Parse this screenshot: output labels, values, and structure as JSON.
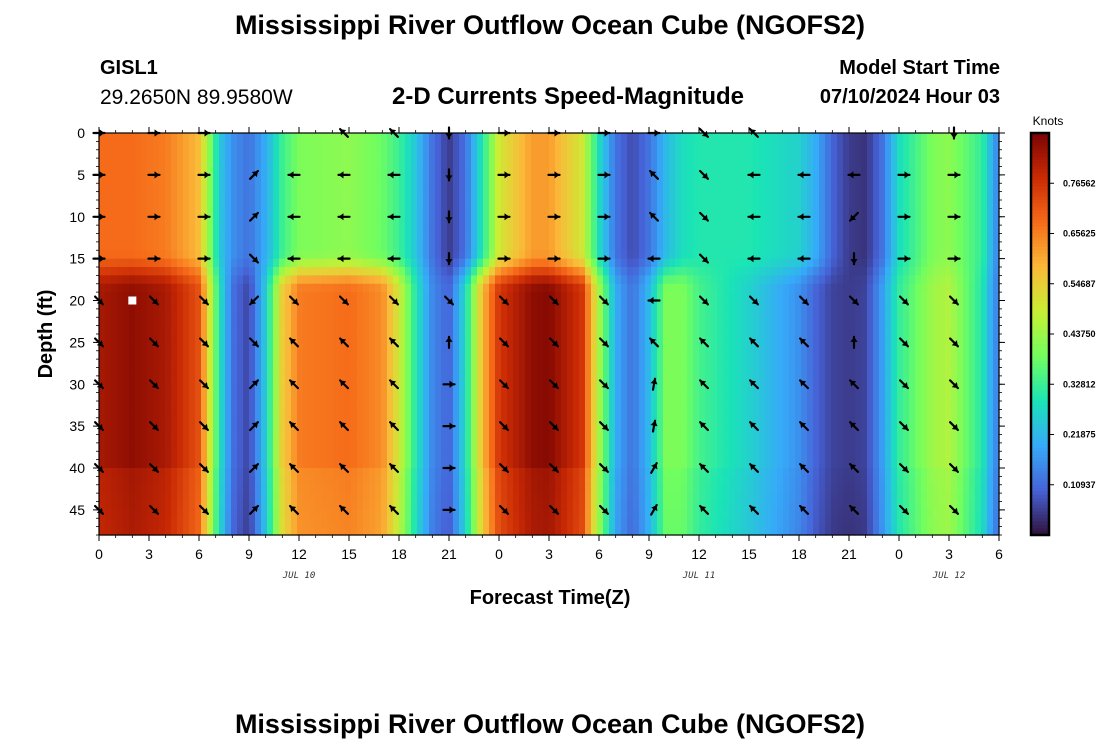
{
  "header": {
    "title": "Mississippi River Outflow Ocean Cube (NGOFS2)",
    "station": "GISL1",
    "coordinates": "29.2650N  89.9580W",
    "subtitle": "2-D Currents Speed-Magnitude",
    "start_label": "Model Start Time",
    "start_value": "07/10/2024 Hour 03"
  },
  "footer": {
    "title": "Mississippi River Outflow Ocean Cube (NGOFS2)"
  },
  "colors": {
    "colormap": [
      "#30123b",
      "#4662d7",
      "#36aaf9",
      "#1ae4b6",
      "#72fe5e",
      "#c8ef34",
      "#faba39",
      "#f66b19",
      "#ca2a04",
      "#7a0403"
    ]
  },
  "chart_data": {
    "type": "heatmap",
    "title": "2-D Currents Speed-Magnitude",
    "xlabel": "Forecast Time(Z)",
    "ylabel": "Depth (ft)",
    "x_range_hours": [
      0,
      54
    ],
    "ylim": [
      0,
      48
    ],
    "x_tick_labels": [
      "0",
      "3",
      "6",
      "9",
      "12",
      "15",
      "18",
      "21",
      "0",
      "3",
      "6",
      "9",
      "12",
      "15",
      "18",
      "21",
      "0",
      "3",
      "6"
    ],
    "y_tick_labels": [
      "0",
      "5",
      "10",
      "15",
      "20",
      "25",
      "30",
      "35",
      "40",
      "45"
    ],
    "date_labels": [
      {
        "text": "JUL 10",
        "hour": 12
      },
      {
        "text": "JUL 11",
        "hour": 36
      },
      {
        "text": "JUL 12",
        "hour": 51
      }
    ],
    "colorbar": {
      "unit": "Knots",
      "range": [
        0,
        0.875
      ],
      "tick_values": [
        0.10937,
        0.21875,
        0.32812,
        0.4375,
        0.54687,
        0.65625,
        0.76562
      ],
      "tick_labels": [
        "0.10937",
        "0.21875",
        "0.32812",
        "0.43750",
        "0.54687",
        "0.65625",
        "0.76562"
      ]
    },
    "speed_profiles": {
      "hours": [
        0,
        2,
        4,
        6,
        6.5,
        7.2,
        8,
        9,
        10,
        11,
        12,
        15,
        17,
        18,
        19,
        20,
        21,
        22,
        23,
        24,
        26,
        27,
        29,
        30,
        31,
        32,
        33,
        34,
        35,
        36,
        39,
        42,
        43,
        44,
        45,
        46,
        47,
        48,
        50,
        51,
        53,
        53.7,
        54
      ],
      "surface_0_15ft": [
        0.68,
        0.68,
        0.66,
        0.58,
        0.45,
        0.25,
        0.16,
        0.12,
        0.2,
        0.33,
        0.4,
        0.42,
        0.38,
        0.33,
        0.24,
        0.12,
        0.05,
        0.12,
        0.3,
        0.5,
        0.62,
        0.62,
        0.5,
        0.28,
        0.12,
        0.07,
        0.12,
        0.22,
        0.28,
        0.3,
        0.3,
        0.26,
        0.2,
        0.1,
        0.05,
        0.04,
        0.12,
        0.28,
        0.4,
        0.42,
        0.32,
        0.18,
        0.14
      ],
      "deep_18_48ft": [
        0.82,
        0.85,
        0.82,
        0.72,
        0.55,
        0.3,
        0.12,
        0.06,
        0.25,
        0.55,
        0.66,
        0.68,
        0.64,
        0.5,
        0.3,
        0.15,
        0.1,
        0.28,
        0.58,
        0.76,
        0.85,
        0.86,
        0.76,
        0.45,
        0.2,
        0.12,
        0.22,
        0.4,
        0.4,
        0.34,
        0.26,
        0.16,
        0.1,
        0.06,
        0.05,
        0.06,
        0.18,
        0.32,
        0.44,
        0.46,
        0.3,
        0.16,
        0.14
      ]
    },
    "vector_rows_ft": [
      0,
      5,
      10,
      15,
      20,
      25,
      30,
      35,
      40,
      45
    ],
    "vector_hours": [
      0,
      3.3,
      6.3,
      9.3,
      11.7,
      14.7,
      17.7,
      21,
      24.3,
      27.3,
      30.3,
      33.3,
      36.3,
      39.3,
      42.3,
      45.3,
      48.3,
      51.3
    ],
    "vector_directions_deg": [
      [
        0,
        0,
        0,
        null,
        null,
        135,
        135,
        270,
        0,
        0,
        0,
        0,
        315,
        135,
        null,
        null,
        null,
        270
      ],
      [
        0,
        0,
        0,
        45,
        180,
        180,
        180,
        270,
        0,
        0,
        0,
        135,
        315,
        180,
        180,
        180,
        0,
        0
      ],
      [
        0,
        0,
        0,
        45,
        180,
        180,
        180,
        270,
        0,
        0,
        0,
        135,
        315,
        180,
        180,
        225,
        0,
        0
      ],
      [
        0,
        0,
        0,
        315,
        180,
        180,
        180,
        270,
        0,
        0,
        0,
        180,
        315,
        180,
        180,
        270,
        0,
        0
      ],
      [
        315,
        315,
        315,
        225,
        315,
        315,
        315,
        315,
        315,
        315,
        315,
        180,
        315,
        315,
        315,
        315,
        315,
        315
      ],
      [
        315,
        315,
        315,
        315,
        135,
        135,
        135,
        90,
        315,
        315,
        315,
        135,
        135,
        135,
        135,
        90,
        315,
        315
      ],
      [
        315,
        315,
        315,
        45,
        135,
        135,
        135,
        0,
        315,
        315,
        315,
        80,
        135,
        135,
        135,
        135,
        315,
        315
      ],
      [
        315,
        315,
        315,
        45,
        135,
        135,
        135,
        0,
        315,
        315,
        315,
        80,
        135,
        135,
        135,
        135,
        315,
        315
      ],
      [
        315,
        315,
        315,
        45,
        135,
        135,
        135,
        0,
        315,
        315,
        315,
        60,
        135,
        135,
        135,
        135,
        315,
        315
      ],
      [
        315,
        315,
        315,
        45,
        135,
        135,
        135,
        0,
        315,
        315,
        315,
        60,
        135,
        135,
        135,
        135,
        315,
        315
      ]
    ],
    "station_marker": {
      "hour": 2,
      "depth_ft": 20
    }
  }
}
